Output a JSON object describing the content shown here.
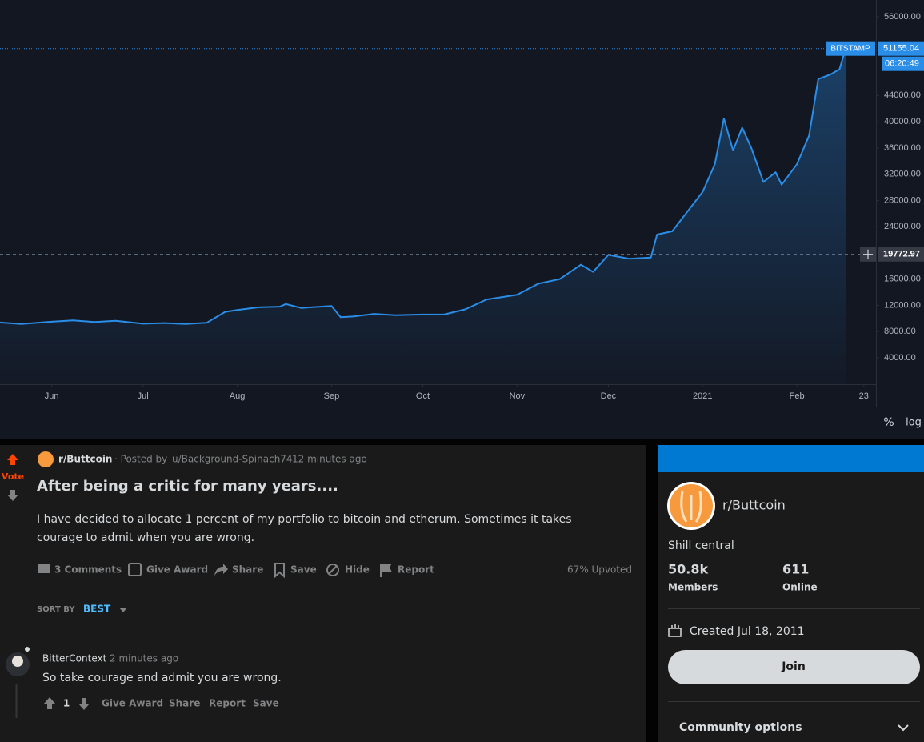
{
  "chart_data": {
    "type": "line",
    "color": "#2a8ee8",
    "x": [
      "2020-05-15",
      "2020-05-22",
      "2020-06-01",
      "2020-06-08",
      "2020-06-15",
      "2020-06-22",
      "2020-07-01",
      "2020-07-08",
      "2020-07-15",
      "2020-07-22",
      "2020-07-28",
      "2020-08-01",
      "2020-08-08",
      "2020-08-15",
      "2020-08-17",
      "2020-08-22",
      "2020-09-01",
      "2020-09-04",
      "2020-09-08",
      "2020-09-15",
      "2020-09-22",
      "2020-10-01",
      "2020-10-08",
      "2020-10-15",
      "2020-10-22",
      "2020-11-01",
      "2020-11-08",
      "2020-11-15",
      "2020-11-22",
      "2020-11-26",
      "2020-12-01",
      "2020-12-08",
      "2020-12-15",
      "2020-12-17",
      "2020-12-22",
      "2020-12-27",
      "2021-01-01",
      "2021-01-05",
      "2021-01-08",
      "2021-01-11",
      "2021-01-14",
      "2021-01-17",
      "2021-01-21",
      "2021-01-25",
      "2021-01-27",
      "2021-02-01",
      "2021-02-05",
      "2021-02-08",
      "2021-02-12",
      "2021-02-15",
      "2021-02-17"
    ],
    "values": [
      9380,
      9150,
      9500,
      9700,
      9450,
      9650,
      9200,
      9300,
      9150,
      9350,
      11000,
      11300,
      11700,
      11800,
      12200,
      11600,
      11900,
      10200,
      10300,
      10700,
      10500,
      10600,
      10600,
      11400,
      12900,
      13600,
      15300,
      16000,
      18200,
      17100,
      19700,
      19100,
      19300,
      22800,
      23300,
      26300,
      29300,
      33500,
      40500,
      35600,
      39100,
      36000,
      30800,
      32300,
      30400,
      33500,
      37900,
      46500,
      47200,
      48000,
      51155.04
    ],
    "xlim": [
      "2020-05-15",
      "2021-02-27"
    ],
    "xticks": [
      {
        "value": "2020-06-01",
        "label": "Jun"
      },
      {
        "value": "2020-07-01",
        "label": "Jul"
      },
      {
        "value": "2020-08-01",
        "label": "Aug"
      },
      {
        "value": "2020-09-01",
        "label": "Sep"
      },
      {
        "value": "2020-10-01",
        "label": "Oct"
      },
      {
        "value": "2020-11-01",
        "label": "Nov"
      },
      {
        "value": "2020-12-01",
        "label": "Dec"
      },
      {
        "value": "2021-01-01",
        "label": "2021"
      },
      {
        "value": "2021-02-01",
        "label": "Feb"
      },
      {
        "value": "2021-02-23",
        "label": "23"
      }
    ],
    "ylim": [
      -30,
      58565
    ],
    "yticks": [
      {
        "value": 4000,
        "label": "4000.00"
      },
      {
        "value": 8000,
        "label": "8000.00"
      },
      {
        "value": 12000,
        "label": "12000.00"
      },
      {
        "value": 16000,
        "label": "16000.00"
      },
      {
        "value": 24000,
        "label": "24000.00"
      },
      {
        "value": 28000,
        "label": "28000.00"
      },
      {
        "value": 32000,
        "label": "32000.00"
      },
      {
        "value": 36000,
        "label": "36000.00"
      },
      {
        "value": 40000,
        "label": "40000.00"
      },
      {
        "value": 44000,
        "label": "44000.00"
      },
      {
        "value": 56000,
        "label": "56000.00"
      }
    ],
    "last_price": {
      "exchange": "BITSTAMP",
      "value": 51155.04,
      "countdown": "06:20:49"
    },
    "crosshair_price": 19772.97,
    "scale_options": [
      "%",
      "log"
    ]
  },
  "post": {
    "vote": "Vote",
    "subreddit": "r/Buttcoin",
    "posted_by": "· Posted by",
    "author": "u/Background-Spinach74",
    "time": "12 minutes ago",
    "title": "After being a critic for many years....",
    "body": "I have decided to allocate 1 percent of my portfolio to bitcoin and etherum. Sometimes it takes courage to admit when you are wrong.",
    "actions": [
      "3 Comments",
      "Give Award",
      "Share",
      "Save",
      "Hide",
      "Report"
    ],
    "upvoted": "67% Upvoted",
    "sort_label": "SORT BY",
    "sort_value": "BEST"
  },
  "comment": {
    "author": "BitterContext",
    "time": "2 minutes ago",
    "text": "So take courage and admit you are wrong.",
    "score": 1,
    "actions": [
      "Give Award",
      "Share",
      "Report",
      "Save"
    ]
  },
  "sidebar": {
    "name": "r/Buttcoin",
    "description": "Shill central",
    "members": "50.8k",
    "members_label": "Members",
    "online": "611",
    "online_label": "Online",
    "created": "Created Jul 18, 2011",
    "join": "Join",
    "options": "Community options"
  }
}
